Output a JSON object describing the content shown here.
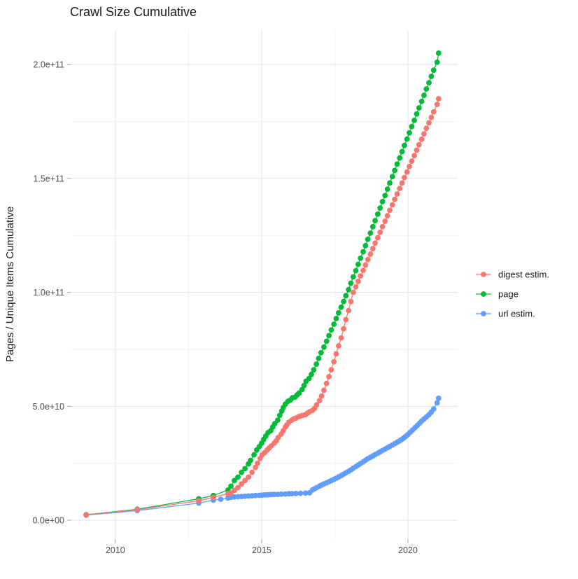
{
  "chart_data": {
    "type": "scatter",
    "title": "Crawl Size Cumulative",
    "xlabel": "",
    "ylabel": "Pages / Unique Items Cumulative",
    "values_unit": "1e9 pages (value 205 means 2.05e+11)",
    "grid": true,
    "legend_position": "right",
    "x_axis": {
      "range": [
        2008.52,
        2021.7
      ],
      "major_ticks": [
        {
          "v": 2010,
          "label": "2010"
        },
        {
          "v": 2015,
          "label": "2015"
        },
        {
          "v": 2020,
          "label": "2020"
        }
      ],
      "minor_ticks": [
        2012.5,
        2017.5
      ]
    },
    "y_axis": {
      "range": [
        -8.3,
        215.1
      ],
      "major_ticks": [
        {
          "v": 0,
          "label": "0.0e+00"
        },
        {
          "v": 50,
          "label": "5.0e+10"
        },
        {
          "v": 100,
          "label": "1.0e+11"
        },
        {
          "v": 150,
          "label": "1.5e+11"
        },
        {
          "v": 200,
          "label": "2.0e+11"
        }
      ],
      "minor_ticks": [
        25,
        75,
        125,
        175
      ]
    },
    "series": [
      {
        "name": "digest estim.",
        "color": "#F8766D",
        "points": [
          [
            2009.0,
            2.3
          ],
          [
            2010.75,
            4.6
          ],
          [
            2012.85,
            8.5
          ],
          [
            2013.35,
            10.0
          ],
          [
            2013.85,
            11.6
          ],
          [
            2013.95,
            11.9
          ],
          [
            2014.07,
            13.1
          ],
          [
            2014.19,
            14.3
          ],
          [
            2014.31,
            15.9
          ],
          [
            2014.43,
            17.4
          ],
          [
            2014.55,
            18.9
          ],
          [
            2014.67,
            21.0
          ],
          [
            2014.79,
            23.2
          ],
          [
            2014.86,
            25.0
          ],
          [
            2014.95,
            27.1
          ],
          [
            2015.02,
            28.7
          ],
          [
            2015.1,
            29.6
          ],
          [
            2015.19,
            30.8
          ],
          [
            2015.26,
            31.7
          ],
          [
            2015.33,
            32.6
          ],
          [
            2015.43,
            33.8
          ],
          [
            2015.5,
            34.8
          ],
          [
            2015.57,
            36.3
          ],
          [
            2015.67,
            37.8
          ],
          [
            2015.74,
            39.3
          ],
          [
            2015.81,
            40.9
          ],
          [
            2015.86,
            41.8
          ],
          [
            2015.93,
            43.0
          ],
          [
            2016.03,
            43.9
          ],
          [
            2016.1,
            44.5
          ],
          [
            2016.17,
            44.8
          ],
          [
            2016.26,
            45.4
          ],
          [
            2016.33,
            45.7
          ],
          [
            2016.41,
            46.0
          ],
          [
            2016.5,
            46.3
          ],
          [
            2016.57,
            47.0
          ],
          [
            2016.64,
            47.6
          ],
          [
            2016.74,
            48.2
          ],
          [
            2016.81,
            49.1
          ],
          [
            2016.88,
            50.6
          ],
          [
            2016.98,
            52.5
          ],
          [
            2017.05,
            54.5
          ],
          [
            2017.13,
            57.0
          ],
          [
            2017.22,
            60.0
          ],
          [
            2017.3,
            63.0
          ],
          [
            2017.38,
            66.0
          ],
          [
            2017.47,
            69.5
          ],
          [
            2017.55,
            73.0
          ],
          [
            2017.63,
            76.5
          ],
          [
            2017.72,
            80.0
          ],
          [
            2017.8,
            84.0
          ],
          [
            2017.88,
            88.0
          ],
          [
            2017.97,
            92.0
          ],
          [
            2018.05,
            96.0
          ],
          [
            2018.13,
            100.0
          ],
          [
            2018.22,
            102.4
          ],
          [
            2018.3,
            104.8
          ],
          [
            2018.38,
            107.2
          ],
          [
            2018.47,
            109.6
          ],
          [
            2018.55,
            112.0
          ],
          [
            2018.63,
            114.4
          ],
          [
            2018.72,
            116.8
          ],
          [
            2018.8,
            119.2
          ],
          [
            2018.88,
            121.6
          ],
          [
            2018.97,
            124.0
          ],
          [
            2019.05,
            126.4
          ],
          [
            2019.13,
            128.8
          ],
          [
            2019.22,
            131.2
          ],
          [
            2019.3,
            133.6
          ],
          [
            2019.38,
            136.0
          ],
          [
            2019.47,
            138.4
          ],
          [
            2019.55,
            140.8
          ],
          [
            2019.63,
            143.2
          ],
          [
            2019.72,
            145.6
          ],
          [
            2019.8,
            148.0
          ],
          [
            2019.88,
            150.4
          ],
          [
            2019.97,
            152.8
          ],
          [
            2020.05,
            155.2
          ],
          [
            2020.13,
            157.6
          ],
          [
            2020.22,
            160.0
          ],
          [
            2020.3,
            162.4
          ],
          [
            2020.38,
            164.8
          ],
          [
            2020.47,
            167.2
          ],
          [
            2020.55,
            169.6
          ],
          [
            2020.63,
            172.0
          ],
          [
            2020.72,
            174.4
          ],
          [
            2020.8,
            176.8
          ],
          [
            2020.88,
            179.2
          ],
          [
            2021.0,
            182.5
          ],
          [
            2021.05,
            185.0
          ]
        ]
      },
      {
        "name": "page",
        "color": "#00BA38",
        "points": [
          [
            2009.0,
            2.4
          ],
          [
            2010.75,
            4.8
          ],
          [
            2012.85,
            9.4
          ],
          [
            2013.35,
            10.8
          ],
          [
            2013.85,
            13.2
          ],
          [
            2013.95,
            14.9
          ],
          [
            2014.07,
            17.4
          ],
          [
            2014.19,
            18.9
          ],
          [
            2014.31,
            21.0
          ],
          [
            2014.43,
            22.6
          ],
          [
            2014.55,
            24.7
          ],
          [
            2014.62,
            26.2
          ],
          [
            2014.74,
            28.7
          ],
          [
            2014.83,
            30.8
          ],
          [
            2014.92,
            32.3
          ],
          [
            2015.0,
            33.8
          ],
          [
            2015.07,
            35.4
          ],
          [
            2015.14,
            36.9
          ],
          [
            2015.22,
            38.4
          ],
          [
            2015.31,
            39.3
          ],
          [
            2015.38,
            40.9
          ],
          [
            2015.45,
            42.4
          ],
          [
            2015.55,
            43.9
          ],
          [
            2015.62,
            46.0
          ],
          [
            2015.69,
            47.9
          ],
          [
            2015.74,
            49.4
          ],
          [
            2015.81,
            50.9
          ],
          [
            2015.9,
            52.1
          ],
          [
            2015.98,
            52.7
          ],
          [
            2016.05,
            53.7
          ],
          [
            2016.14,
            54.0
          ],
          [
            2016.21,
            54.9
          ],
          [
            2016.28,
            55.8
          ],
          [
            2016.38,
            57.3
          ],
          [
            2016.45,
            59.1
          ],
          [
            2016.52,
            61.0
          ],
          [
            2016.62,
            62.2
          ],
          [
            2016.7,
            64.0
          ],
          [
            2016.78,
            66.0
          ],
          [
            2016.87,
            68.5
          ],
          [
            2016.95,
            71.0
          ],
          [
            2017.03,
            73.5
          ],
          [
            2017.13,
            76.0
          ],
          [
            2017.22,
            78.5
          ],
          [
            2017.3,
            81.0
          ],
          [
            2017.38,
            83.5
          ],
          [
            2017.47,
            86.0
          ],
          [
            2017.55,
            88.5
          ],
          [
            2017.63,
            91.0
          ],
          [
            2017.72,
            93.5
          ],
          [
            2017.8,
            96.0
          ],
          [
            2017.88,
            98.5
          ],
          [
            2017.97,
            101.2
          ],
          [
            2018.05,
            104.0
          ],
          [
            2018.13,
            106.8
          ],
          [
            2018.22,
            109.5
          ],
          [
            2018.3,
            112.3
          ],
          [
            2018.38,
            115.0
          ],
          [
            2018.47,
            117.8
          ],
          [
            2018.55,
            120.5
          ],
          [
            2018.63,
            123.3
          ],
          [
            2018.72,
            126.0
          ],
          [
            2018.8,
            128.8
          ],
          [
            2018.88,
            131.5
          ],
          [
            2018.97,
            134.3
          ],
          [
            2019.05,
            137.0
          ],
          [
            2019.13,
            139.8
          ],
          [
            2019.22,
            142.5
          ],
          [
            2019.3,
            145.3
          ],
          [
            2019.38,
            148.0
          ],
          [
            2019.47,
            150.8
          ],
          [
            2019.55,
            153.5
          ],
          [
            2019.63,
            156.3
          ],
          [
            2019.72,
            159.0
          ],
          [
            2019.8,
            161.8
          ],
          [
            2019.88,
            164.5
          ],
          [
            2019.97,
            167.3
          ],
          [
            2020.05,
            170.0
          ],
          [
            2020.13,
            172.8
          ],
          [
            2020.22,
            175.5
          ],
          [
            2020.3,
            178.3
          ],
          [
            2020.38,
            181.0
          ],
          [
            2020.47,
            183.8
          ],
          [
            2020.55,
            186.5
          ],
          [
            2020.63,
            189.3
          ],
          [
            2020.72,
            192.0
          ],
          [
            2020.8,
            194.8
          ],
          [
            2020.88,
            197.5
          ],
          [
            2021.0,
            201.0
          ],
          [
            2021.05,
            205.0
          ]
        ]
      },
      {
        "name": "url estim.",
        "color": "#619CFF",
        "points": [
          [
            2009.0,
            2.2
          ],
          [
            2010.75,
            4.2
          ],
          [
            2012.85,
            7.5
          ],
          [
            2013.35,
            8.8
          ],
          [
            2013.6,
            9.2
          ],
          [
            2013.85,
            9.7
          ],
          [
            2013.95,
            10.0
          ],
          [
            2014.07,
            10.2
          ],
          [
            2014.19,
            10.3
          ],
          [
            2014.31,
            10.4
          ],
          [
            2014.43,
            10.5
          ],
          [
            2014.55,
            10.6
          ],
          [
            2014.67,
            10.7
          ],
          [
            2014.79,
            10.8
          ],
          [
            2014.92,
            10.9
          ],
          [
            2015.02,
            11.0
          ],
          [
            2015.1,
            11.1
          ],
          [
            2015.19,
            11.15
          ],
          [
            2015.26,
            11.2
          ],
          [
            2015.33,
            11.25
          ],
          [
            2015.43,
            11.3
          ],
          [
            2015.55,
            11.35
          ],
          [
            2015.67,
            11.4
          ],
          [
            2015.81,
            11.5
          ],
          [
            2015.93,
            11.6
          ],
          [
            2016.03,
            11.65
          ],
          [
            2016.17,
            11.7
          ],
          [
            2016.33,
            11.8
          ],
          [
            2016.5,
            11.9
          ],
          [
            2016.64,
            12.0
          ],
          [
            2016.74,
            13.3
          ],
          [
            2016.81,
            13.8
          ],
          [
            2016.88,
            14.3
          ],
          [
            2016.98,
            15.0
          ],
          [
            2017.05,
            15.4
          ],
          [
            2017.13,
            15.9
          ],
          [
            2017.22,
            16.4
          ],
          [
            2017.3,
            16.9
          ],
          [
            2017.38,
            17.4
          ],
          [
            2017.47,
            17.9
          ],
          [
            2017.55,
            18.4
          ],
          [
            2017.63,
            19.0
          ],
          [
            2017.72,
            19.6
          ],
          [
            2017.8,
            20.2
          ],
          [
            2017.88,
            20.8
          ],
          [
            2017.97,
            21.4
          ],
          [
            2018.05,
            22.1
          ],
          [
            2018.13,
            22.8
          ],
          [
            2018.22,
            23.5
          ],
          [
            2018.3,
            24.2
          ],
          [
            2018.38,
            24.9
          ],
          [
            2018.47,
            25.6
          ],
          [
            2018.55,
            26.3
          ],
          [
            2018.63,
            27.0
          ],
          [
            2018.72,
            27.6
          ],
          [
            2018.8,
            28.2
          ],
          [
            2018.88,
            28.8
          ],
          [
            2018.97,
            29.4
          ],
          [
            2019.05,
            30.0
          ],
          [
            2019.13,
            30.6
          ],
          [
            2019.22,
            31.2
          ],
          [
            2019.3,
            31.8
          ],
          [
            2019.38,
            32.4
          ],
          [
            2019.47,
            33.0
          ],
          [
            2019.55,
            33.6
          ],
          [
            2019.63,
            34.2
          ],
          [
            2019.7,
            34.7
          ],
          [
            2019.76,
            35.2
          ],
          [
            2019.82,
            35.7
          ],
          [
            2019.88,
            36.3
          ],
          [
            2019.94,
            36.9
          ],
          [
            2020.0,
            37.6
          ],
          [
            2020.08,
            38.6
          ],
          [
            2020.16,
            39.6
          ],
          [
            2020.24,
            40.6
          ],
          [
            2020.32,
            41.6
          ],
          [
            2020.4,
            42.6
          ],
          [
            2020.47,
            43.5
          ],
          [
            2020.55,
            44.4
          ],
          [
            2020.63,
            45.3
          ],
          [
            2020.72,
            46.3
          ],
          [
            2020.8,
            47.4
          ],
          [
            2020.88,
            48.8
          ],
          [
            2021.0,
            51.5
          ],
          [
            2021.05,
            53.5
          ]
        ]
      }
    ]
  }
}
